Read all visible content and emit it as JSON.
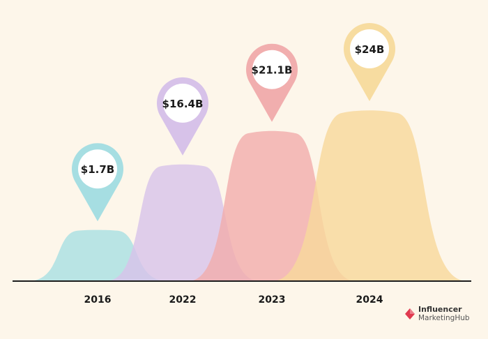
{
  "chart_data": {
    "type": "area",
    "title": "",
    "xlabel": "",
    "ylabel": "",
    "categories": [
      "2016",
      "2022",
      "2023",
      "2024"
    ],
    "values": [
      1.7,
      16.4,
      21.1,
      24
    ],
    "value_labels": [
      "$1.7B",
      "$16.4B",
      "$21.1B",
      "$24B"
    ],
    "unit": "USD billions",
    "ylim": [
      0,
      24
    ],
    "grid": false,
    "legend": "none"
  },
  "colors": {
    "background": "#fdf6ea",
    "baseline": "#1c1c1c",
    "series": [
      "#a9dfe3",
      "#d8c3ea",
      "#f2adad",
      "#f8d89c"
    ],
    "pins": [
      "#a6dee2",
      "#d7c2e9",
      "#f1aeae",
      "#f7dca0"
    ],
    "brand_mark": "#e0394f"
  },
  "brand": {
    "line1": "Influencer",
    "line2": "MarketingHub",
    "icon": "diamond-logo-icon"
  }
}
